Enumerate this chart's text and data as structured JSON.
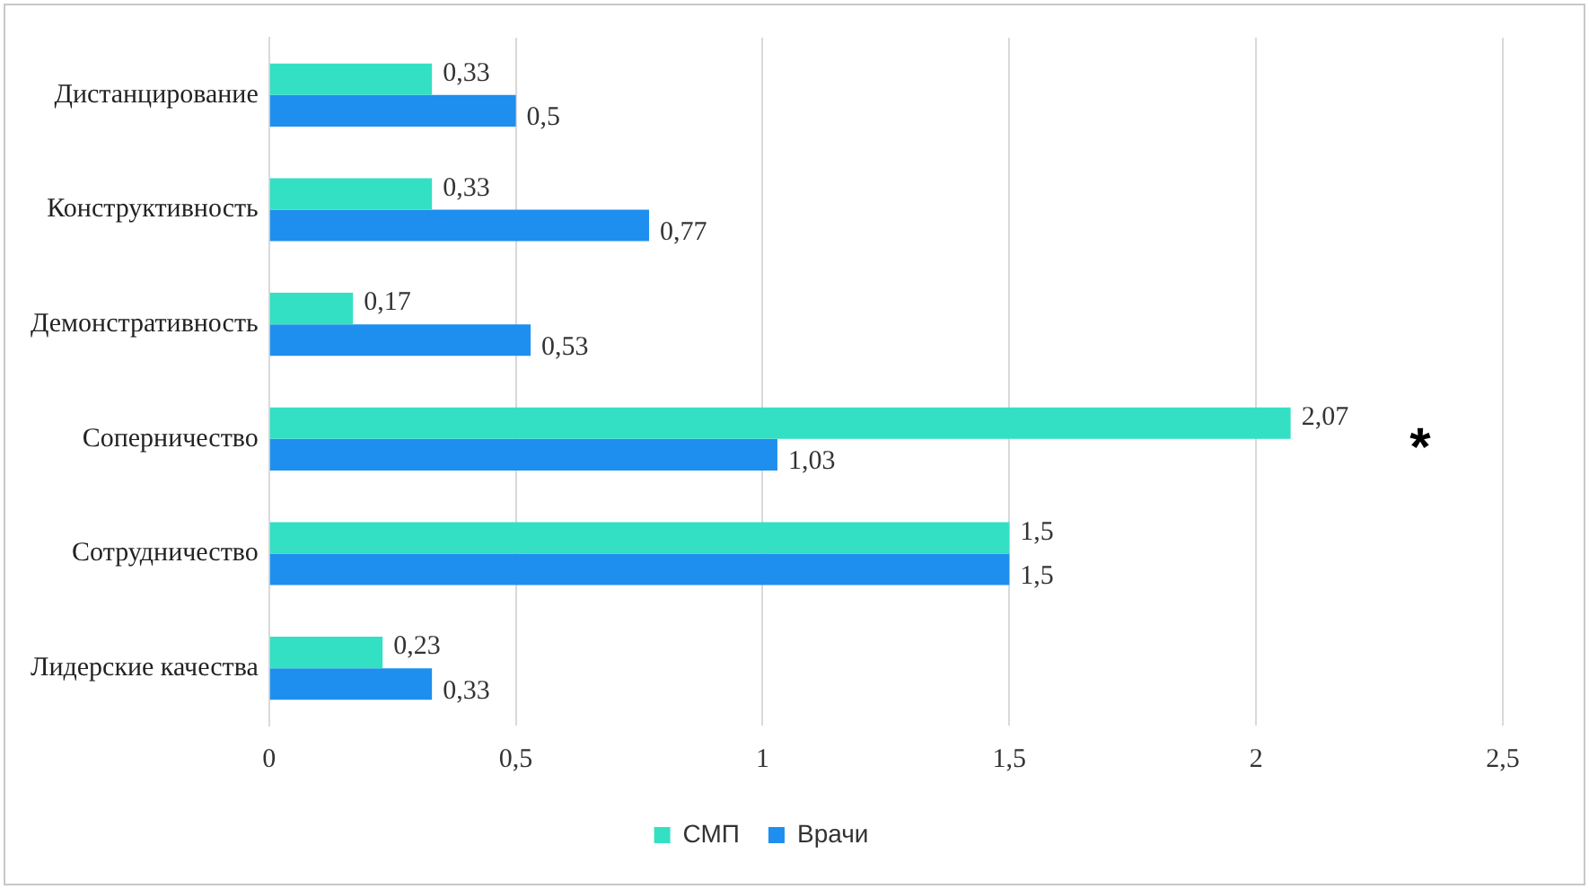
{
  "chart_data": {
    "type": "bar",
    "orientation": "horizontal",
    "categories": [
      "Дистанцирование",
      "Конструктивность",
      "Демонстративность",
      "Соперничество",
      "Сотрудничество",
      "Лидерские качества"
    ],
    "series": [
      {
        "name": "СМП",
        "color": "#33e0c4",
        "values": [
          0.33,
          0.33,
          0.17,
          2.07,
          1.5,
          0.23
        ],
        "value_labels": [
          "0,33",
          "0,33",
          "0,17",
          "2,07",
          "1,5",
          "0,23"
        ]
      },
      {
        "name": "Врачи",
        "color": "#1e8fee",
        "values": [
          0.5,
          0.77,
          0.53,
          1.03,
          1.5,
          0.33
        ],
        "value_labels": [
          "0,5",
          "0,77",
          "0,53",
          "1,03",
          "1,5",
          "0,33"
        ]
      }
    ],
    "xlim": [
      0,
      2.5
    ],
    "xticks": [
      0,
      {
        "value": 0.5,
        "label": "0,5"
      },
      1,
      {
        "value": 1.5,
        "label": "1,5"
      },
      2,
      {
        "value": 2.5,
        "label": "2,5"
      }
    ],
    "grid": "x",
    "legend": "bottom",
    "annotations": [
      "*"
    ]
  }
}
